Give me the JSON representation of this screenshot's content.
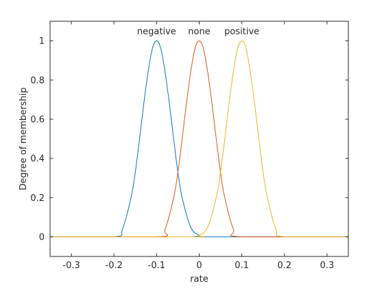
{
  "chart_data": {
    "type": "line",
    "title": "",
    "xlabel": "rate",
    "ylabel": "Degree of membership",
    "xlim": [
      -0.35,
      0.35
    ],
    "ylim": [
      -0.1,
      1.1
    ],
    "xticks": [
      -0.3,
      -0.2,
      -0.1,
      0,
      0.1,
      0.2,
      0.3
    ],
    "xtick_labels": [
      "-0.3",
      "-0.2",
      "-0.1",
      "0",
      "0.1",
      "0.2",
      "0.3"
    ],
    "yticks": [
      0,
      0.2,
      0.4,
      0.6,
      0.8,
      1
    ],
    "ytick_labels": [
      "0",
      "0.2",
      "0.4",
      "0.6",
      "0.8",
      "1"
    ],
    "grid": false,
    "series": [
      {
        "name": "negative",
        "color": "#0072bd",
        "x": [
          -0.35,
          -0.2,
          -0.18,
          -0.16,
          -0.15,
          -0.14,
          -0.13,
          -0.12,
          -0.11,
          -0.1,
          -0.09,
          -0.08,
          -0.07,
          -0.06,
          -0.05,
          -0.04,
          -0.02,
          0,
          0.02,
          0.35
        ],
        "y": [
          0,
          0,
          0.04,
          0.2,
          0.33,
          0.5,
          0.68,
          0.84,
          0.96,
          1.0,
          0.96,
          0.84,
          0.68,
          0.5,
          0.33,
          0.2,
          0.05,
          0.008,
          0,
          0
        ]
      },
      {
        "name": "none",
        "color": "#d95319",
        "x": [
          -0.35,
          -0.1,
          -0.08,
          -0.06,
          -0.05,
          -0.04,
          -0.03,
          -0.02,
          -0.01,
          0,
          0.01,
          0.02,
          0.03,
          0.04,
          0.05,
          0.06,
          0.08,
          0.1,
          0.35
        ],
        "y": [
          0,
          0,
          0.04,
          0.2,
          0.33,
          0.5,
          0.68,
          0.84,
          0.96,
          1.0,
          0.96,
          0.84,
          0.68,
          0.5,
          0.33,
          0.2,
          0.04,
          0,
          0
        ]
      },
      {
        "name": "positive",
        "color": "#edb120",
        "x": [
          -0.35,
          -0.02,
          0,
          0.02,
          0.04,
          0.05,
          0.06,
          0.07,
          0.08,
          0.09,
          0.1,
          0.11,
          0.12,
          0.13,
          0.14,
          0.15,
          0.16,
          0.18,
          0.2,
          0.35
        ],
        "y": [
          0,
          0,
          0.008,
          0.05,
          0.2,
          0.33,
          0.5,
          0.68,
          0.84,
          0.96,
          1.0,
          0.96,
          0.84,
          0.68,
          0.5,
          0.33,
          0.2,
          0.04,
          0,
          0
        ]
      }
    ],
    "annotations": [
      {
        "text": "negative",
        "x": -0.1,
        "y": 1.02
      },
      {
        "text": "none",
        "x": 0.0,
        "y": 1.02
      },
      {
        "text": "positive",
        "x": 0.1,
        "y": 1.02
      }
    ]
  }
}
